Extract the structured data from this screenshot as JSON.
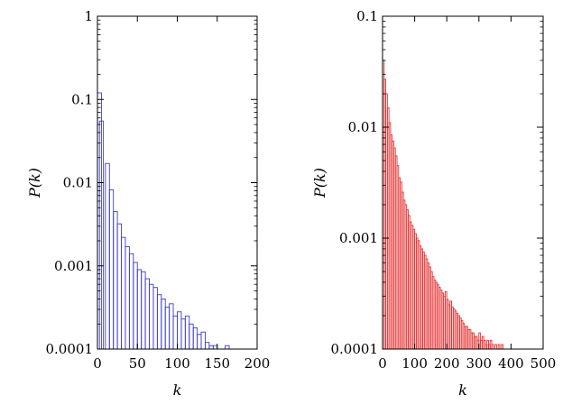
{
  "chart_data": [
    {
      "type": "bar",
      "subtype": "histogram",
      "xlabel": "k",
      "ylabel": "P(k)",
      "xlim": [
        0,
        200
      ],
      "ylim": [
        0.0001,
        1
      ],
      "yscale": "log",
      "bar_color": "#3b3bd6",
      "bar_style": "outline",
      "xticks": [
        "0",
        "50",
        "100",
        "150",
        "200"
      ],
      "yticks": [
        "0.0001",
        "0.001",
        "0.01",
        "0.1",
        "1"
      ],
      "bin_width": 5,
      "bins": [
        {
          "x": 0,
          "y": 0.12
        },
        {
          "x": 2.5,
          "y": 0.055
        },
        {
          "x": 10,
          "y": 0.017
        },
        {
          "x": 15,
          "y": 0.0082
        },
        {
          "x": 20,
          "y": 0.0045
        },
        {
          "x": 25,
          "y": 0.0032
        },
        {
          "x": 30,
          "y": 0.0022
        },
        {
          "x": 35,
          "y": 0.0017
        },
        {
          "x": 40,
          "y": 0.0014
        },
        {
          "x": 45,
          "y": 0.0011
        },
        {
          "x": 50,
          "y": 0.0009
        },
        {
          "x": 55,
          "y": 0.00085
        },
        {
          "x": 60,
          "y": 0.0007
        },
        {
          "x": 65,
          "y": 0.0006
        },
        {
          "x": 70,
          "y": 0.00055
        },
        {
          "x": 75,
          "y": 0.00045
        },
        {
          "x": 80,
          "y": 0.0004
        },
        {
          "x": 85,
          "y": 0.00032
        },
        {
          "x": 90,
          "y": 0.00035
        },
        {
          "x": 95,
          "y": 0.00025
        },
        {
          "x": 100,
          "y": 0.00028
        },
        {
          "x": 105,
          "y": 0.00023
        },
        {
          "x": 110,
          "y": 0.00025
        },
        {
          "x": 115,
          "y": 0.0002
        },
        {
          "x": 120,
          "y": 0.00018
        },
        {
          "x": 125,
          "y": 0.00015
        },
        {
          "x": 130,
          "y": 0.00016
        },
        {
          "x": 135,
          "y": 0.00012
        },
        {
          "x": 140,
          "y": 0.00011
        },
        {
          "x": 145,
          "y": 0.00011
        },
        {
          "x": 150,
          "y": 0.0001
        },
        {
          "x": 160,
          "y": 0.00011
        }
      ]
    },
    {
      "type": "bar",
      "subtype": "histogram",
      "xlabel": "k",
      "ylabel": "P(k)",
      "xlim": [
        0,
        500
      ],
      "ylim": [
        0.0001,
        0.1
      ],
      "yscale": "log",
      "bar_color": "#e63030",
      "bar_style": "outline",
      "xticks": [
        "0",
        "100",
        "200",
        "300",
        "400",
        "500"
      ],
      "yticks": [
        "0.0001",
        "0.001",
        "0.01",
        "0.1"
      ],
      "bin_width": 5,
      "bins": [
        {
          "x": 0,
          "y": 0.04
        },
        {
          "x": 5,
          "y": 0.027
        },
        {
          "x": 10,
          "y": 0.02
        },
        {
          "x": 15,
          "y": 0.015
        },
        {
          "x": 20,
          "y": 0.011
        },
        {
          "x": 25,
          "y": 0.0085
        },
        {
          "x": 30,
          "y": 0.0075
        },
        {
          "x": 35,
          "y": 0.0065
        },
        {
          "x": 40,
          "y": 0.0055
        },
        {
          "x": 45,
          "y": 0.0045
        },
        {
          "x": 50,
          "y": 0.0035
        },
        {
          "x": 55,
          "y": 0.0032
        },
        {
          "x": 60,
          "y": 0.0026
        },
        {
          "x": 65,
          "y": 0.0022
        },
        {
          "x": 70,
          "y": 0.002
        },
        {
          "x": 75,
          "y": 0.0018
        },
        {
          "x": 80,
          "y": 0.0016
        },
        {
          "x": 85,
          "y": 0.0014
        },
        {
          "x": 90,
          "y": 0.0013
        },
        {
          "x": 95,
          "y": 0.0012
        },
        {
          "x": 100,
          "y": 0.0011
        },
        {
          "x": 105,
          "y": 0.001
        },
        {
          "x": 110,
          "y": 0.00095
        },
        {
          "x": 115,
          "y": 0.00085
        },
        {
          "x": 120,
          "y": 0.0008
        },
        {
          "x": 125,
          "y": 0.00075
        },
        {
          "x": 130,
          "y": 0.0007
        },
        {
          "x": 135,
          "y": 0.00065
        },
        {
          "x": 140,
          "y": 0.0006
        },
        {
          "x": 145,
          "y": 0.00055
        },
        {
          "x": 150,
          "y": 0.0005
        },
        {
          "x": 155,
          "y": 0.00045
        },
        {
          "x": 160,
          "y": 0.00042
        },
        {
          "x": 165,
          "y": 0.0004
        },
        {
          "x": 170,
          "y": 0.00038
        },
        {
          "x": 175,
          "y": 0.00036
        },
        {
          "x": 180,
          "y": 0.00034
        },
        {
          "x": 185,
          "y": 0.00032
        },
        {
          "x": 190,
          "y": 0.0003
        },
        {
          "x": 195,
          "y": 0.00033
        },
        {
          "x": 200,
          "y": 0.00028
        },
        {
          "x": 205,
          "y": 0.00025
        },
        {
          "x": 210,
          "y": 0.00027
        },
        {
          "x": 215,
          "y": 0.00024
        },
        {
          "x": 220,
          "y": 0.00023
        },
        {
          "x": 225,
          "y": 0.00022
        },
        {
          "x": 230,
          "y": 0.00021
        },
        {
          "x": 235,
          "y": 0.0002
        },
        {
          "x": 240,
          "y": 0.00019
        },
        {
          "x": 245,
          "y": 0.00018
        },
        {
          "x": 250,
          "y": 0.00017
        },
        {
          "x": 255,
          "y": 0.00016
        },
        {
          "x": 260,
          "y": 0.00016
        },
        {
          "x": 265,
          "y": 0.00015
        },
        {
          "x": 270,
          "y": 0.00015
        },
        {
          "x": 275,
          "y": 0.00014
        },
        {
          "x": 280,
          "y": 0.00014
        },
        {
          "x": 285,
          "y": 0.00013
        },
        {
          "x": 290,
          "y": 0.00013
        },
        {
          "x": 295,
          "y": 0.00012
        },
        {
          "x": 300,
          "y": 0.00014
        },
        {
          "x": 305,
          "y": 0.00012
        },
        {
          "x": 310,
          "y": 0.00013
        },
        {
          "x": 315,
          "y": 0.00012
        },
        {
          "x": 320,
          "y": 0.00011
        },
        {
          "x": 325,
          "y": 0.00012
        },
        {
          "x": 330,
          "y": 0.00011
        },
        {
          "x": 335,
          "y": 0.00012
        },
        {
          "x": 340,
          "y": 0.00011
        },
        {
          "x": 345,
          "y": 0.0001
        },
        {
          "x": 350,
          "y": 0.00011
        },
        {
          "x": 355,
          "y": 0.0001
        },
        {
          "x": 360,
          "y": 0.00011
        },
        {
          "x": 365,
          "y": 0.0001
        },
        {
          "x": 370,
          "y": 0.00011
        },
        {
          "x": 375,
          "y": 0.0001
        },
        {
          "x": 380,
          "y": 0.0001
        },
        {
          "x": 385,
          "y": 0.0001
        },
        {
          "x": 390,
          "y": 0.0001
        },
        {
          "x": 395,
          "y": 0.0001
        },
        {
          "x": 400,
          "y": 0.0001
        },
        {
          "x": 410,
          "y": 0.0001
        },
        {
          "x": 420,
          "y": 0.0001
        },
        {
          "x": 430,
          "y": 0.0001
        },
        {
          "x": 440,
          "y": 0.0001
        },
        {
          "x": 450,
          "y": 0.0001
        }
      ]
    }
  ]
}
